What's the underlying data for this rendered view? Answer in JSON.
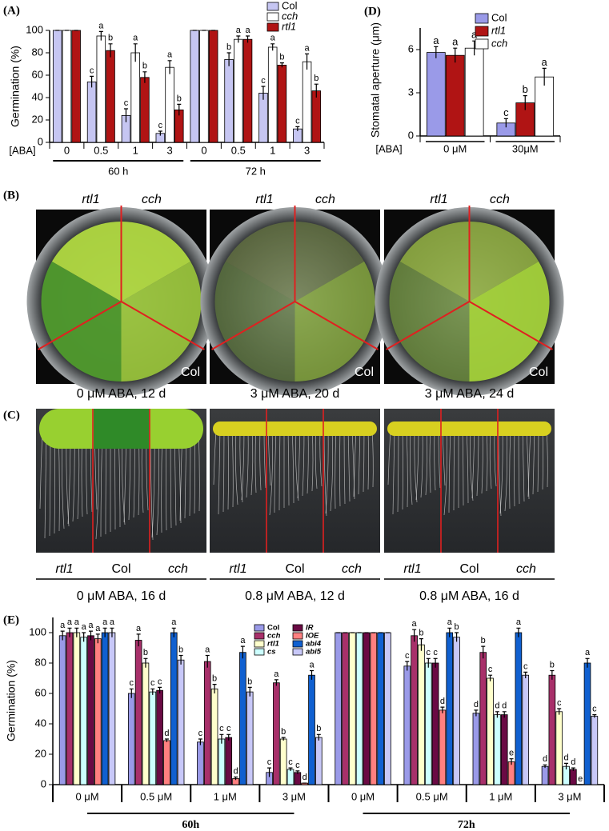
{
  "chart_data": [
    {
      "type": "bar",
      "panel": "(A)",
      "y_label": "Germination (%)",
      "x_label": "[ABA]",
      "categories": [
        "0",
        "0.5",
        "1",
        "3",
        "0",
        "0.5",
        "1",
        "3"
      ],
      "groups": [
        "60 h",
        "72 h"
      ],
      "ylim": [
        0,
        100
      ],
      "yticks": [
        0,
        20,
        40,
        60,
        80,
        100
      ],
      "series": [
        {
          "name": "Col",
          "color": "#c6c6f2",
          "values": [
            100,
            54,
            24,
            8,
            100,
            74,
            44,
            12
          ],
          "errors": [
            0,
            5,
            6,
            2,
            0,
            6,
            6,
            2
          ],
          "letters": [
            null,
            "c",
            "c",
            "c",
            null,
            "b",
            "c",
            "c"
          ]
        },
        {
          "name": "cch",
          "color": "#ffffff",
          "values": [
            100,
            95,
            80,
            67,
            100,
            92,
            85,
            72
          ],
          "errors": [
            0,
            4,
            8,
            6,
            0,
            3,
            3,
            7
          ],
          "letters": [
            null,
            "a",
            "a",
            "a",
            null,
            "a",
            "a",
            "a"
          ]
        },
        {
          "name": "rtl1",
          "color": "#b01414",
          "values": [
            100,
            82,
            58,
            29,
            100,
            92,
            69,
            46
          ],
          "errors": [
            0,
            6,
            5,
            5,
            0,
            3,
            2,
            6
          ],
          "letters": [
            null,
            "b",
            "b",
            "b",
            null,
            "a",
            "b",
            "b"
          ]
        }
      ]
    },
    {
      "type": "bar",
      "panel": "(D)",
      "y_label": "Stomatal aperture (μm)",
      "x_label": "[ABA]",
      "categories": [
        "0 μM",
        "30μM"
      ],
      "ylim": [
        0,
        7.5
      ],
      "yticks": [
        0,
        3,
        6
      ],
      "series": [
        {
          "name": "Col",
          "color": "#9a9ae8",
          "values": [
            5.8,
            0.9
          ],
          "errors": [
            0.4,
            0.3
          ],
          "letters": [
            "a",
            "c"
          ]
        },
        {
          "name": "rtl1",
          "color": "#b01414",
          "values": [
            5.6,
            2.3
          ],
          "errors": [
            0.5,
            0.5
          ],
          "letters": [
            "a",
            "b"
          ]
        },
        {
          "name": "cch",
          "color": "#ffffff",
          "values": [
            6.1,
            4.1
          ],
          "errors": [
            0.5,
            0.6
          ],
          "letters": [
            "a",
            "a"
          ]
        }
      ]
    },
    {
      "type": "bar",
      "panel": "(E)",
      "y_label": "Germination (%)",
      "categories": [
        "0 μM",
        "0.5 μM",
        "1 μM",
        "3 μM",
        "0 μM",
        "0.5 μM",
        "1 μM",
        "3 μM"
      ],
      "groups": [
        "60h",
        "72h"
      ],
      "ylim": [
        0,
        110
      ],
      "yticks": [
        0,
        20,
        40,
        60,
        80,
        100
      ],
      "series": [
        {
          "name": "Col",
          "color": "#9a9ae8",
          "values": [
            98,
            60,
            28,
            8,
            100,
            78,
            47,
            12
          ],
          "errors": [
            3,
            3,
            2,
            3,
            0,
            3,
            2,
            1
          ],
          "letters": [
            "a",
            "c",
            "c",
            "c",
            null,
            "c",
            "d",
            "d"
          ]
        },
        {
          "name": "cch",
          "color": "#a8306a",
          "values": [
            100,
            95,
            81,
            67,
            100,
            98,
            87,
            72
          ],
          "errors": [
            3,
            4,
            4,
            2,
            0,
            4,
            4,
            3
          ],
          "letters": [
            "a",
            "a",
            "a",
            "a",
            null,
            "a",
            "b",
            "b"
          ]
        },
        {
          "name": "rtl1",
          "color": "#ffffcc",
          "values": [
            100,
            80,
            63,
            30,
            100,
            92,
            70,
            48
          ],
          "errors": [
            3,
            3,
            3,
            1,
            0,
            4,
            2,
            2
          ],
          "letters": [
            "a",
            "b",
            "b",
            "b",
            null,
            "b",
            "c",
            "c"
          ]
        },
        {
          "name": "cs",
          "color": "#ccffff",
          "values": [
            97,
            61,
            30,
            10,
            100,
            80,
            46,
            12
          ],
          "errors": [
            3,
            2,
            3,
            1,
            0,
            3,
            2,
            2
          ],
          "letters": [
            "a",
            "c",
            "c",
            "c",
            null,
            "c",
            "d",
            "d"
          ]
        },
        {
          "name": "IR",
          "color": "#6a0a44",
          "values": [
            98,
            62,
            31,
            8,
            100,
            80,
            46,
            10
          ],
          "errors": [
            3,
            2,
            2,
            1,
            0,
            3,
            2,
            1
          ],
          "letters": [
            "a",
            "c",
            "c",
            "c",
            null,
            "c",
            "d",
            "d"
          ]
        },
        {
          "name": "IOE",
          "color": "#ff8080",
          "values": [
            96,
            29,
            4,
            1,
            100,
            49,
            15,
            0
          ],
          "errors": [
            3,
            1,
            1,
            0,
            0,
            2,
            2,
            0
          ],
          "letters": [
            "a",
            "d",
            "d",
            "d",
            null,
            "d",
            "e",
            "e"
          ]
        },
        {
          "name": "abi4",
          "color": "#1060d0",
          "values": [
            100,
            100,
            87,
            72,
            100,
            100,
            100,
            80
          ],
          "errors": [
            3,
            3,
            4,
            3,
            0,
            3,
            3,
            3
          ],
          "letters": [
            "a",
            "a",
            "a",
            "a",
            null,
            "a",
            "a",
            "a"
          ]
        },
        {
          "name": "abi5",
          "color": "#c8c8f8",
          "values": [
            100,
            82,
            61,
            31,
            100,
            97,
            72,
            45
          ],
          "errors": [
            3,
            3,
            3,
            2,
            0,
            3,
            2,
            1
          ],
          "letters": [
            "a",
            "b",
            "b",
            "b",
            null,
            "b",
            "c",
            "c"
          ]
        }
      ]
    }
  ],
  "photo_panels": [
    {
      "panel": "(B)",
      "plates": [
        {
          "top_labels": [
            "rtl1",
            "cch"
          ],
          "corner_label": "Col",
          "caption": "0 μM ABA, 12 d"
        },
        {
          "top_labels": [
            "rtl1",
            "cch"
          ],
          "corner_label": "Col",
          "caption": "3 μM ABA, 20 d"
        },
        {
          "top_labels": [
            "rtl1",
            "cch"
          ],
          "corner_label": "Col",
          "caption": "3 μM ABA, 24 d"
        }
      ]
    },
    {
      "panel": "(C)",
      "plates": [
        {
          "bottom_labels": [
            "rtl1",
            "Col",
            "cch"
          ],
          "caption": "0 μM ABA, 16 d"
        },
        {
          "bottom_labels": [
            "rtl1",
            "Col",
            "cch"
          ],
          "caption": "0.8 μM ABA, 12 d"
        },
        {
          "bottom_labels": [
            "rtl1",
            "Col",
            "cch"
          ],
          "caption": "0.8 μM ABA, 16 d"
        }
      ]
    }
  ]
}
